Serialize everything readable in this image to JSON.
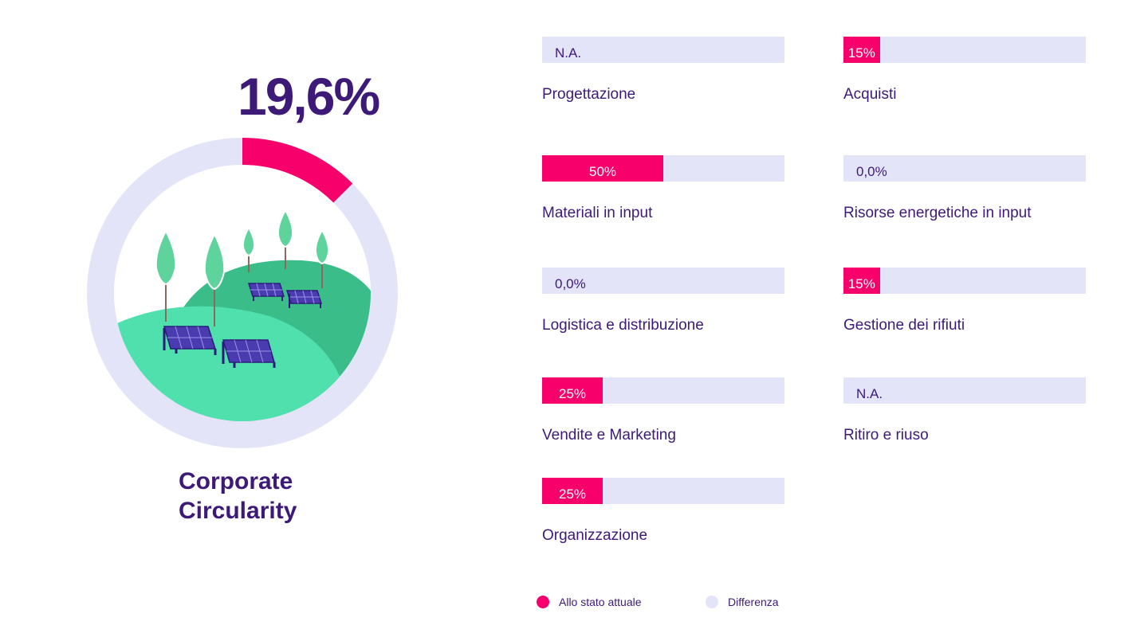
{
  "overall": {
    "value_label": "19,6%",
    "value": 19.6,
    "title_line1": "Corporate",
    "title_line2": "Circularity"
  },
  "chart_data": {
    "type": "bar",
    "orientation": "horizontal",
    "ylim": [
      0,
      100
    ],
    "categories": [
      "Progettazione",
      "Acquisti",
      "Materiali in input",
      "Risorse energetiche in input",
      "Logistica e distribuzione",
      "Gestione dei rifiuti",
      "Vendite e Marketing",
      "Ritiro e riuso",
      "Organizzazione"
    ],
    "values": [
      null,
      15,
      50,
      0,
      0,
      15,
      25,
      null,
      25
    ],
    "value_labels": [
      "N.A.",
      "15%",
      "50%",
      "0,0%",
      "0,0%",
      "15%",
      "25%",
      "N.A.",
      "25%"
    ],
    "series": [
      {
        "name": "Allo stato attuale",
        "color": "#f7006b"
      },
      {
        "name": "Differenza",
        "color": "#e4e4f8"
      }
    ],
    "legend_placement": "bottom"
  },
  "colors": {
    "accent": "#f7006b",
    "track": "#e4e4f8",
    "text": "#3d1a78",
    "hill_light": "#4fe0ad",
    "hill_dark": "#3bbd8a"
  },
  "illustration": {
    "name": "hills-with-trees-and-solar-panels"
  }
}
